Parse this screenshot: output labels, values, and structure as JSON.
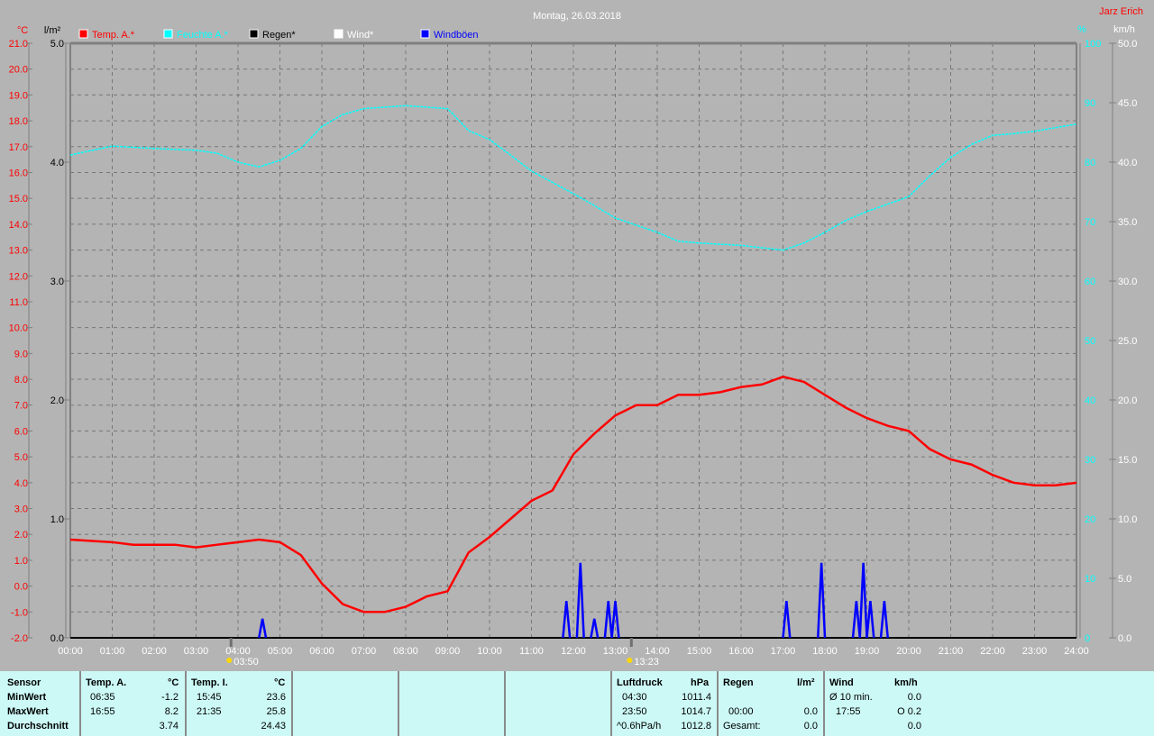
{
  "header": {
    "title": "Montag, 26.03.2018",
    "author": "Jarz Erich"
  },
  "colors": {
    "background": "#b4b4b4",
    "temp": "#ff0000",
    "humidity": "#00ffff",
    "rain": "#000000",
    "wind": "#ffffff",
    "gusts": "#0000ff",
    "table_bg": "#ccf9f6"
  },
  "chart_data": {
    "type": "line",
    "title": "Montag, 26.03.2018",
    "legend": [
      {
        "name": "Temp. A.*",
        "color": "#ff0000"
      },
      {
        "name": "Feuchte A.*",
        "color": "#00ffff"
      },
      {
        "name": "Regen*",
        "color": "#000000"
      },
      {
        "name": "Wind*",
        "color": "#ffffff"
      },
      {
        "name": "Windböen",
        "color": "#0000ff"
      }
    ],
    "legend_placement": "top",
    "grid": true,
    "x_ticks": [
      "00:00",
      "01:00",
      "02:00",
      "03:00",
      "04:00",
      "05:00",
      "06:00",
      "07:00",
      "08:00",
      "09:00",
      "10:00",
      "11:00",
      "12:00",
      "13:00",
      "14:00",
      "15:00",
      "16:00",
      "17:00",
      "18:00",
      "19:00",
      "20:00",
      "21:00",
      "22:00",
      "23:00",
      "24:00"
    ],
    "xlim_hours": [
      0,
      24
    ],
    "axes": {
      "temp": {
        "unit": "°C",
        "range": [
          -2,
          21
        ],
        "ticks": [
          "21.0",
          "20.0",
          "19.0",
          "18.0",
          "17.0",
          "16.0",
          "15.0",
          "14.0",
          "13.0",
          "12.0",
          "11.0",
          "10.0",
          "9.0",
          "8.0",
          "7.0",
          "6.0",
          "5.0",
          "4.0",
          "3.0",
          "2.0",
          "1.0",
          "0.0",
          "-1.0",
          "-2.0"
        ]
      },
      "rain": {
        "unit": "l/m²",
        "range": [
          0,
          5
        ],
        "ticks": [
          "5.0",
          "4.0",
          "3.0",
          "2.0",
          "1.0",
          "0.0"
        ]
      },
      "humidity": {
        "unit": "%",
        "range": [
          0,
          100
        ],
        "ticks": [
          "100",
          "90",
          "80",
          "70",
          "60",
          "50",
          "40",
          "30",
          "20",
          "10",
          "0"
        ]
      },
      "wind": {
        "unit": "km/h",
        "range": [
          0,
          50
        ],
        "ticks": [
          "50.0",
          "45.0",
          "40.0",
          "35.0",
          "30.0",
          "25.0",
          "20.0",
          "15.0",
          "10.0",
          "5.0",
          "0.0"
        ]
      }
    },
    "markers": [
      {
        "time": "03:50",
        "label": "03:50"
      },
      {
        "time": "13:23",
        "label": "13:23"
      }
    ],
    "series": [
      {
        "name": "Temp. A.*",
        "axis": "temp",
        "color": "#ff0000",
        "x": [
          "00:00",
          "01:00",
          "01:30",
          "02:00",
          "02:30",
          "03:00",
          "03:30",
          "04:00",
          "04:30",
          "05:00",
          "05:30",
          "06:00",
          "06:30",
          "07:00",
          "07:30",
          "08:00",
          "08:30",
          "09:00",
          "09:30",
          "10:00",
          "10:30",
          "11:00",
          "11:30",
          "12:00",
          "12:30",
          "13:00",
          "13:30",
          "14:00",
          "14:30",
          "15:00",
          "15:30",
          "16:00",
          "16:30",
          "17:00",
          "17:30",
          "18:00",
          "18:30",
          "19:00",
          "19:30",
          "20:00",
          "20:30",
          "21:00",
          "21:30",
          "22:00",
          "22:30",
          "23:00",
          "23:30",
          "24:00"
        ],
        "y": [
          1.8,
          1.7,
          1.6,
          1.6,
          1.6,
          1.5,
          1.6,
          1.7,
          1.8,
          1.7,
          1.2,
          0.1,
          -0.7,
          -1.0,
          -1.0,
          -0.8,
          -0.4,
          -0.2,
          1.3,
          1.9,
          2.6,
          3.3,
          3.7,
          5.1,
          5.9,
          6.6,
          7.0,
          7.0,
          7.4,
          7.4,
          7.5,
          7.7,
          7.8,
          8.1,
          7.9,
          7.4,
          6.9,
          6.5,
          6.2,
          6.0,
          5.3,
          4.9,
          4.7,
          4.3,
          4.0,
          3.9,
          3.9,
          4.0
        ]
      },
      {
        "name": "Feuchte A.*",
        "axis": "humidity",
        "color": "#00ffff",
        "x": [
          "00:00",
          "01:00",
          "02:00",
          "03:00",
          "03:30",
          "04:00",
          "04:30",
          "05:00",
          "05:30",
          "06:00",
          "06:30",
          "07:00",
          "08:00",
          "09:00",
          "09:30",
          "10:00",
          "10:30",
          "11:00",
          "12:00",
          "12:30",
          "13:00",
          "14:00",
          "14:30",
          "15:00",
          "16:00",
          "17:00",
          "17:30",
          "18:00",
          "18:30",
          "19:00",
          "20:00",
          "20:30",
          "21:00",
          "21:30",
          "22:00",
          "22:30",
          "23:00",
          "24:00"
        ],
        "y": [
          81.2,
          82.7,
          82.3,
          82.0,
          81.5,
          80.0,
          79.2,
          80.3,
          82.3,
          86.0,
          88.0,
          89.0,
          89.5,
          89.0,
          85.3,
          83.8,
          81.2,
          78.5,
          74.7,
          72.7,
          70.6,
          68.2,
          66.7,
          66.4,
          66.0,
          65.2,
          66.4,
          68.2,
          70.2,
          71.7,
          74.2,
          77.7,
          80.8,
          83.0,
          84.5,
          84.8,
          85.2,
          86.4
        ]
      },
      {
        "name": "Windböen",
        "axis": "wind",
        "color": "#0000ff",
        "style": "spikes",
        "x": [
          "04:35",
          "11:50",
          "12:10",
          "12:30",
          "12:50",
          "13:00",
          "17:05",
          "17:55",
          "18:45",
          "18:55",
          "19:05",
          "19:25"
        ],
        "y": [
          1.6,
          3.1,
          6.3,
          1.6,
          3.1,
          3.1,
          3.1,
          6.3,
          3.1,
          6.3,
          3.1,
          3.1
        ]
      }
    ]
  },
  "table": {
    "sensor": {
      "header": "Sensor",
      "rows": [
        "MinWert",
        "MaxWert",
        "Durchschnitt"
      ]
    },
    "temp_a": {
      "header": "Temp. A.",
      "unit": "°C",
      "min_time": "06:35",
      "min": "-1.2",
      "max_time": "16:55",
      "max": "8.2",
      "avg": "3.74"
    },
    "temp_i": {
      "header": "Temp. I.",
      "unit": "°C",
      "min_time": "15:45",
      "min": "23.6",
      "max_time": "21:35",
      "max": "25.8",
      "avg": "24.43"
    },
    "pressure": {
      "header": "Luftdruck",
      "unit": "hPa",
      "min_time": "04:30",
      "min": "1011.4",
      "max_time": "23:50",
      "max": "1014.7",
      "trend": "^0.6hPa/h",
      "avg": "1012.8"
    },
    "rain": {
      "header": "Regen",
      "unit": "l/m²",
      "max_time": "00:00",
      "max": "0.0",
      "total_label": "Gesamt:",
      "total": "0.0"
    },
    "wind": {
      "header": "Wind",
      "unit": "km/h",
      "avg_label": "Ø 10 min.",
      "avg": "0.0",
      "max_time": "17:55",
      "max": "O 0.2",
      "last": "0.0"
    }
  }
}
